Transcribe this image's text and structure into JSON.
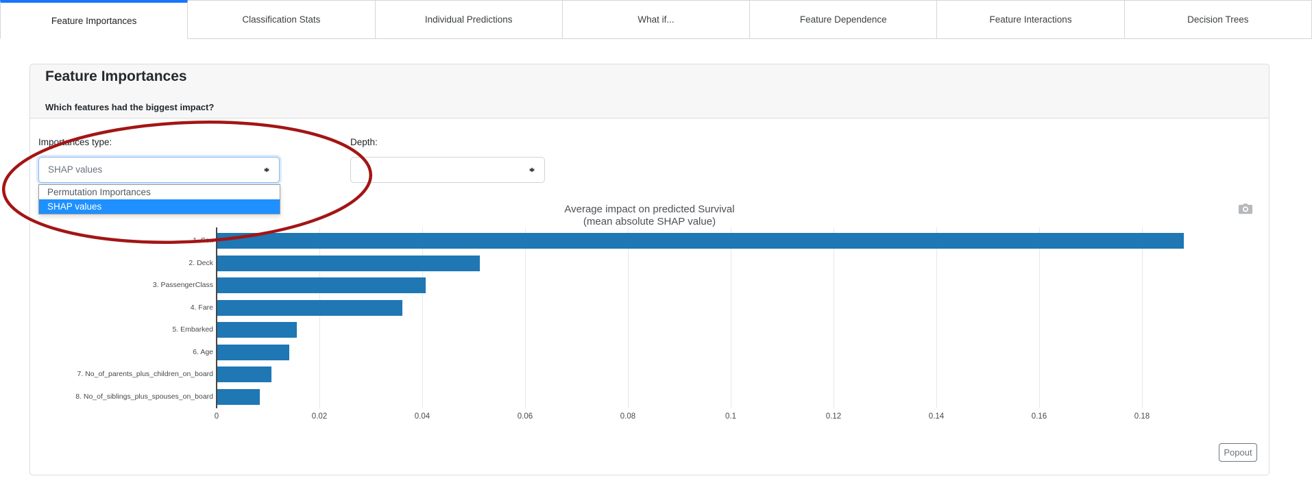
{
  "colors": {
    "active_tab_indicator": "#1975fa",
    "dropdown_highlight": "#1e90ff",
    "annotation_red": "#a31515",
    "bar_blue": "#1f77b4"
  },
  "tabs": [
    {
      "label": "Feature Importances",
      "active": true
    },
    {
      "label": "Classification Stats",
      "active": false
    },
    {
      "label": "Individual Predictions",
      "active": false
    },
    {
      "label": "What if...",
      "active": false
    },
    {
      "label": "Feature Dependence",
      "active": false
    },
    {
      "label": "Feature Interactions",
      "active": false
    },
    {
      "label": "Decision Trees",
      "active": false
    }
  ],
  "card": {
    "title": "Feature Importances",
    "subtitle": "Which features had the biggest impact?"
  },
  "controls": {
    "importances_type": {
      "label": "Importances type:",
      "value": "SHAP values",
      "options": [
        "Permutation Importances",
        "SHAP values"
      ],
      "highlighted_option": "SHAP values"
    },
    "depth": {
      "label": "Depth:",
      "value": ""
    }
  },
  "chart_data": {
    "type": "bar",
    "orientation": "horizontal",
    "title": "Average impact on predicted Survival",
    "subtitle": "(mean absolute SHAP value)",
    "categories": [
      "1. Sex",
      "2. Deck",
      "3. PassengerClass",
      "4. Fare",
      "5. Embarked",
      "6. Age",
      "7. No_of_parents_plus_children_on_board",
      "8. No_of_siblings_plus_spouses_on_board"
    ],
    "values": [
      0.188,
      0.051,
      0.0405,
      0.036,
      0.0155,
      0.014,
      0.0105,
      0.0083
    ],
    "xlim": [
      0,
      0.189
    ],
    "xticks": [
      0,
      0.02,
      0.04,
      0.06,
      0.08,
      0.1,
      0.12,
      0.14,
      0.16,
      0.18
    ],
    "xtick_labels": [
      "0",
      "0.02",
      "0.04",
      "0.06",
      "0.08",
      "0.1",
      "0.12",
      "0.14",
      "0.16",
      "0.18"
    ],
    "grid": true,
    "bar_color": "#1f77b4",
    "legend": "none"
  },
  "icons": {
    "camera": "camera-icon",
    "select_arrow": "up-down-arrows-icon"
  },
  "popout_label": "Popout"
}
